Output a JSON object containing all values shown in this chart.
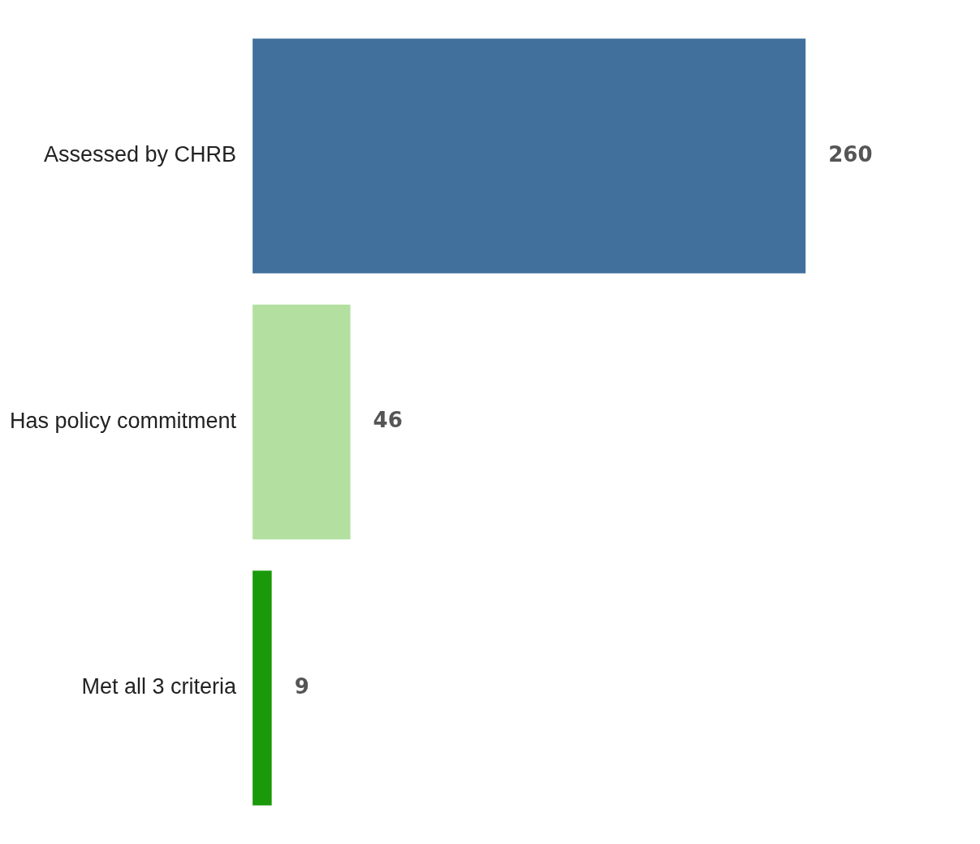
{
  "chart_data": {
    "type": "bar",
    "orientation": "horizontal",
    "categories": [
      "Assessed by CHRB",
      "Has policy commitment",
      "Met all 3 criteria"
    ],
    "values": [
      260,
      46,
      9
    ],
    "colors": [
      "#41709c",
      "#b3e0a0",
      "#1a9a0a"
    ],
    "data_labels": true,
    "legend": false
  }
}
